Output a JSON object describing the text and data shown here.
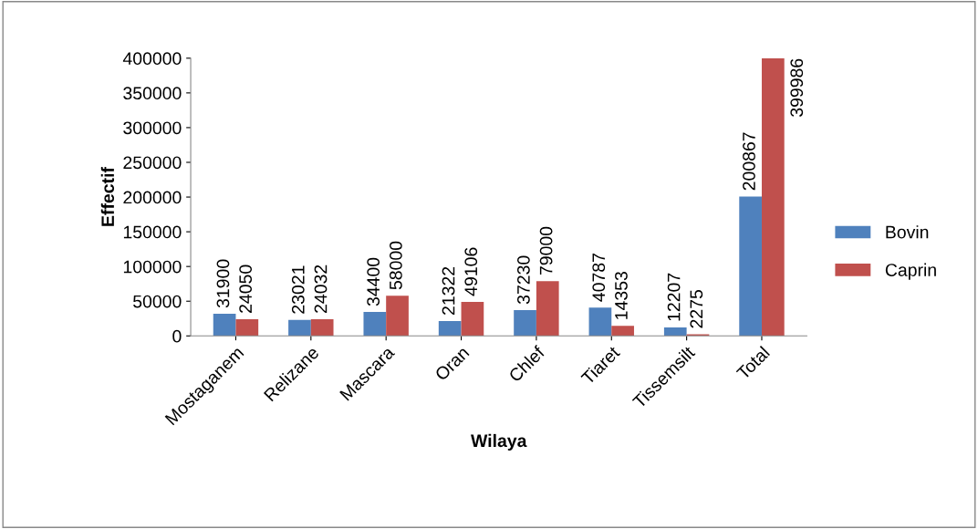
{
  "chart_data": {
    "type": "bar",
    "xlabel": "Wilaya",
    "ylabel": "Effectif",
    "categories": [
      "Mostaganem",
      "Relizane",
      "Mascara",
      "Oran",
      "Chlef",
      "Tiaret",
      "Tissemsilt",
      "Total"
    ],
    "series": [
      {
        "name": "Bovin",
        "color": "#4f81bd",
        "values": [
          31900,
          23021,
          34400,
          21322,
          37230,
          40787,
          12207,
          200867
        ]
      },
      {
        "name": "Caprin",
        "color": "#c0504d",
        "values": [
          24050,
          24032,
          58000,
          49106,
          79000,
          14353,
          2275,
          399986
        ]
      }
    ],
    "ylim": [
      0,
      400000
    ],
    "yticks": [
      0,
      50000,
      100000,
      150000,
      200000,
      250000,
      300000,
      350000,
      400000
    ],
    "data_labels": true,
    "legend": "right",
    "grid": false
  }
}
